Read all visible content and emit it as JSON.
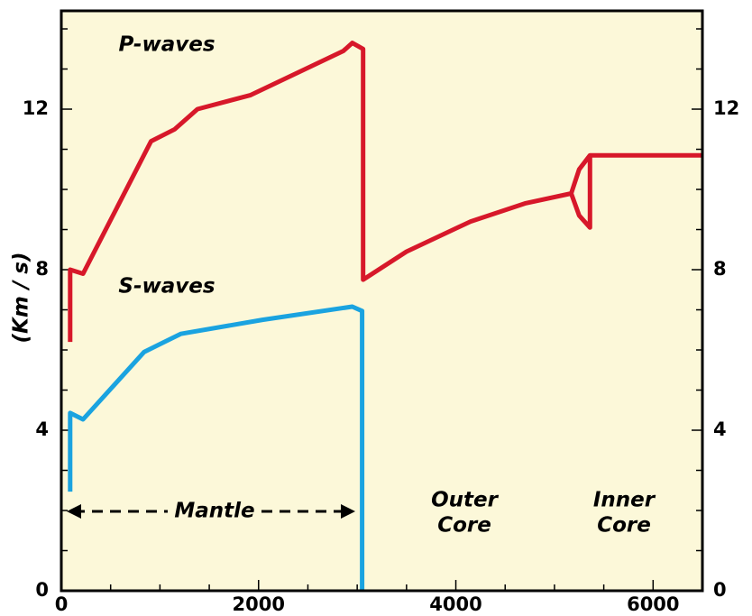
{
  "chart_data": {
    "type": "line",
    "y_label": "(Km / s)",
    "xlim": [
      0,
      6500
    ],
    "ylim": [
      0,
      14.45
    ],
    "y2lim": [
      0,
      14.45
    ],
    "xticks": [
      0,
      2000,
      4000,
      6000
    ],
    "xminorticks": [
      500,
      1000,
      1500,
      2500,
      3000,
      3500,
      4500,
      5000,
      5500
    ],
    "yticks": [
      0,
      4,
      8,
      12
    ],
    "yminorticks": [
      1,
      2,
      3,
      5,
      6,
      7,
      9,
      10,
      11,
      13,
      14
    ],
    "y2ticks": [
      0,
      4,
      8,
      12
    ],
    "series": [
      {
        "name": "P-waves",
        "color": "#d7182a",
        "x": [
          90,
          90,
          220,
          910,
          1150,
          1380,
          1920,
          2860,
          2950,
          3060,
          3060,
          3500,
          4150,
          4700,
          5170,
          5250,
          5360,
          6500,
          null,
          5170,
          5250,
          5360,
          5360
        ],
        "values": [
          6.2,
          8.0,
          7.9,
          11.2,
          11.5,
          12.0,
          12.35,
          13.45,
          13.65,
          13.5,
          7.75,
          8.45,
          9.2,
          9.65,
          9.9,
          10.5,
          10.85,
          10.85,
          null,
          9.9,
          9.35,
          9.05,
          10.85
        ]
      },
      {
        "name": "S-waves",
        "color": "#1aa3e0",
        "x": [
          90,
          90,
          220,
          840,
          1210,
          2040,
          2950,
          3050,
          3050
        ],
        "values": [
          2.47,
          4.43,
          4.27,
          5.95,
          6.4,
          6.75,
          7.08,
          6.97,
          0
        ]
      }
    ],
    "annotations": [
      {
        "lines": [
          "Mantle"
        ]
      },
      {
        "lines": [
          "Outer",
          "Core"
        ]
      },
      {
        "lines": [
          "Inner",
          "Core"
        ]
      }
    ]
  }
}
